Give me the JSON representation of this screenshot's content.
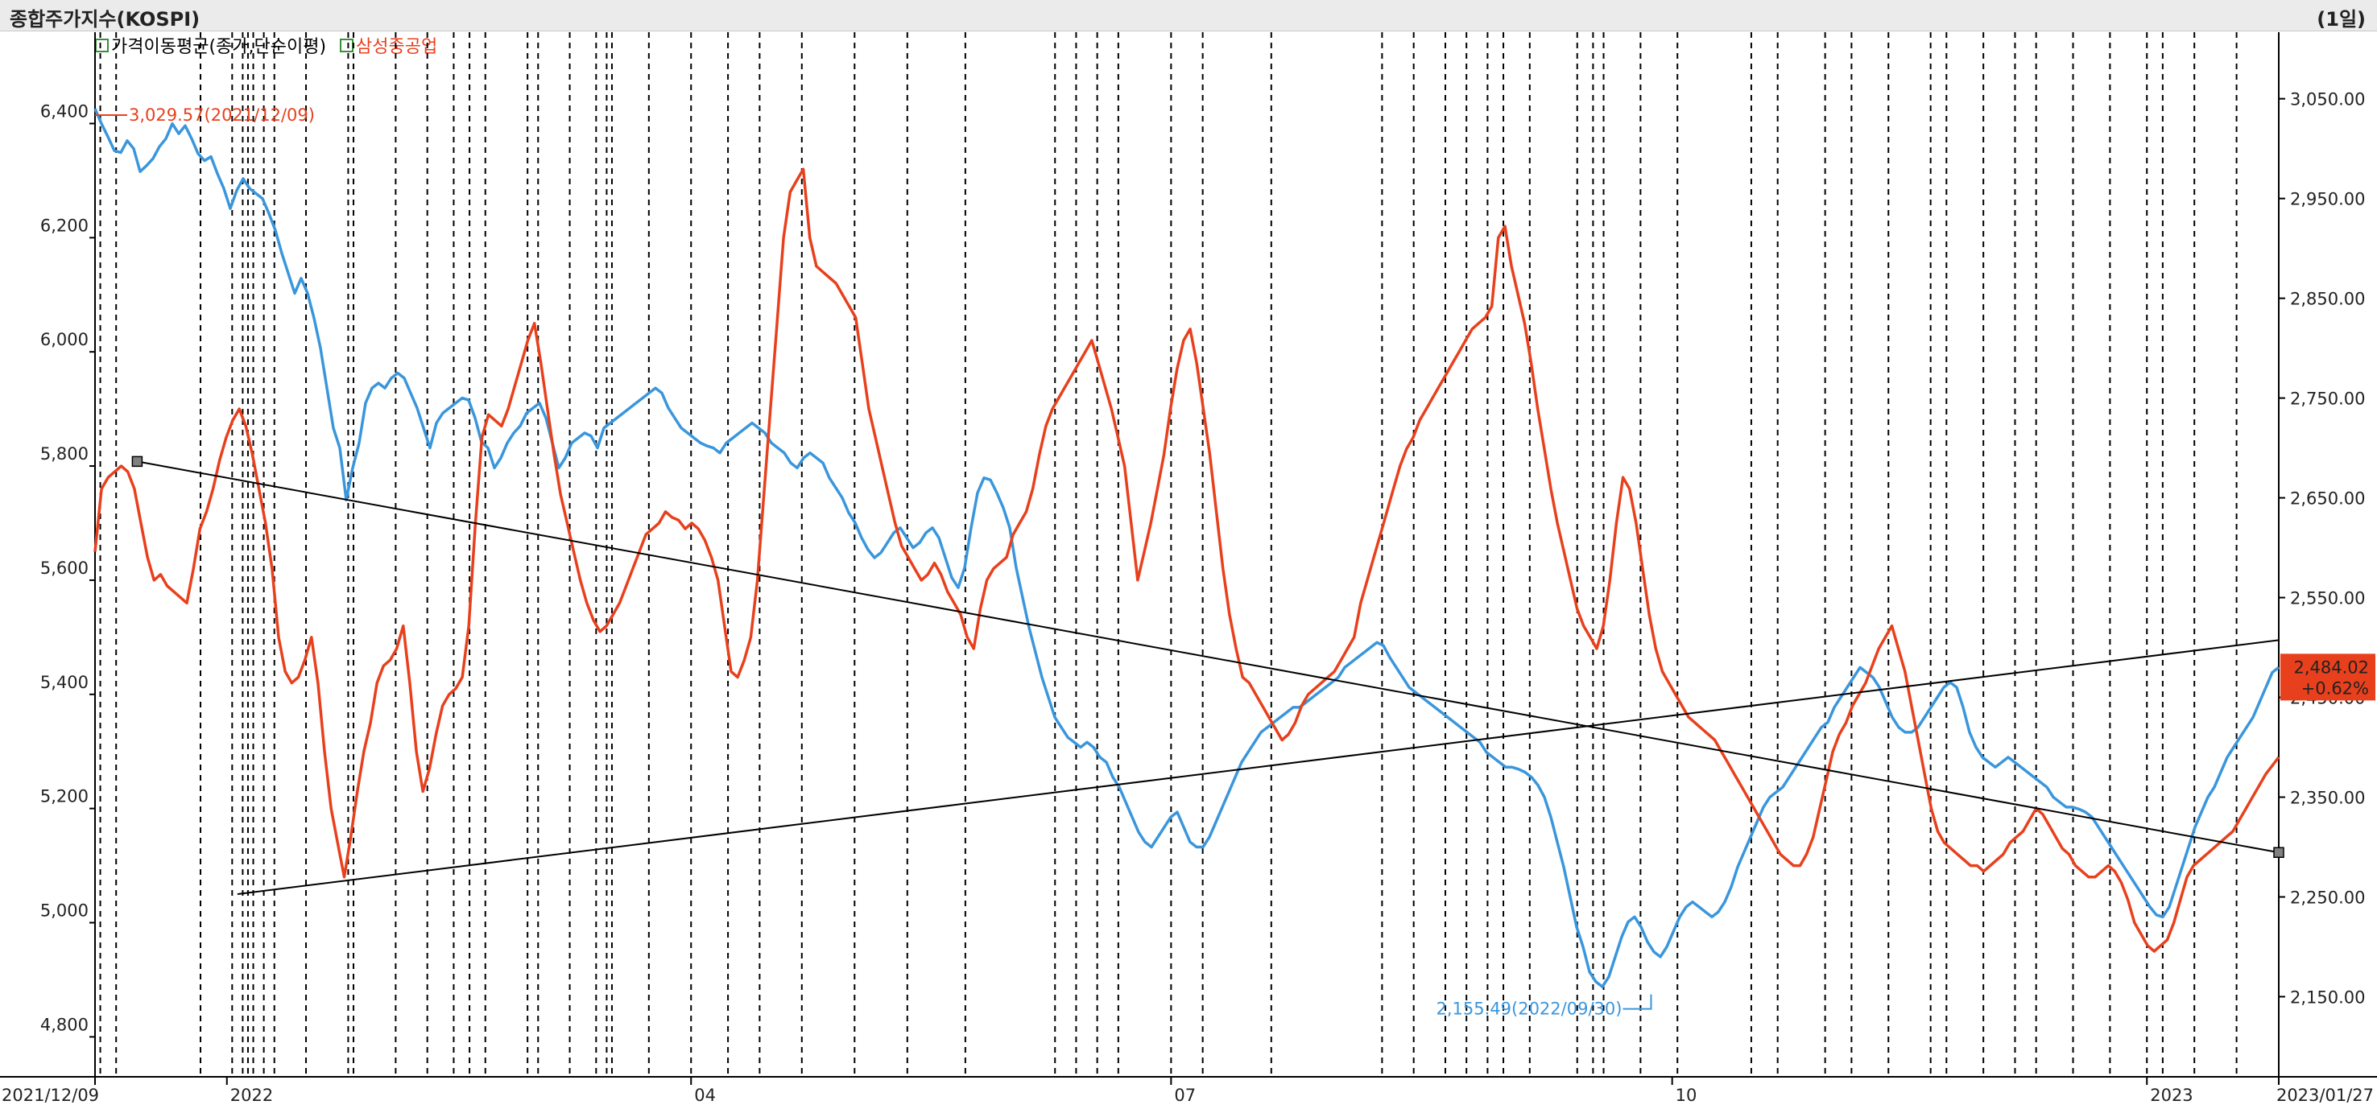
{
  "header": {
    "title": "종합주가지수(KOSPI)",
    "period": "(1일)"
  },
  "legend": [
    {
      "label": "가격이동평균(종가,단순이평)",
      "color": "#000000"
    },
    {
      "label": "삼성중공업",
      "color": "#e8401c"
    }
  ],
  "colors": {
    "blue": "#3a96dc",
    "red": "#e8401c",
    "trend": "#000000",
    "grid": "#000000"
  },
  "chart_data": {
    "type": "line",
    "x_range": [
      "2021/12/09",
      "2023/01/27"
    ],
    "x_tick_labels": [
      {
        "label": "2021/12/09",
        "date": "2021-12-09"
      },
      {
        "label": "2022",
        "date": "2022-01-03"
      },
      {
        "label": "04",
        "date": "2022-04-01"
      },
      {
        "label": "07",
        "date": "2022-07-01"
      },
      {
        "label": "10",
        "date": "2022-10-04"
      },
      {
        "label": "2023",
        "date": "2023-01-02"
      },
      {
        "label": "2023/01/27",
        "date": "2023-01-27"
      }
    ],
    "left_axis": {
      "ticks": [
        "6,400",
        "6,200",
        "6,000",
        "5,800",
        "5,600",
        "5,400",
        "5,200",
        "5,000",
        "4,800"
      ],
      "ylim": [
        4730,
        6560
      ]
    },
    "right_axis": {
      "ticks": [
        "3,050.00",
        "2,950.00",
        "2,850.00",
        "2,750.00",
        "2,650.00",
        "2,550.00",
        "2,450.00",
        "2,350.00",
        "2,250.00",
        "2,150.00"
      ],
      "ylim": [
        2069.7,
        3116.7
      ]
    },
    "series": [
      {
        "axis": "right",
        "color": "#3a96dc",
        "values": [
          3040,
          3025,
          3012,
          2998,
          2996,
          3008,
          3000,
          2977,
          2983,
          2990,
          3002,
          3010,
          3025,
          3015,
          3023,
          3010,
          2995,
          2988,
          2992,
          2975,
          2960,
          2940,
          2958,
          2970,
          2960,
          2955,
          2950,
          2935,
          2918,
          2895,
          2875,
          2855,
          2870,
          2855,
          2830,
          2800,
          2760,
          2720,
          2700,
          2648,
          2680,
          2705,
          2745,
          2760,
          2765,
          2760,
          2770,
          2775,
          2770,
          2755,
          2740,
          2720,
          2700,
          2725,
          2735,
          2740,
          2745,
          2750,
          2748,
          2730,
          2706,
          2700,
          2680,
          2690,
          2705,
          2715,
          2722,
          2735,
          2740,
          2745,
          2730,
          2705,
          2680,
          2690,
          2705,
          2710,
          2715,
          2712,
          2700,
          2720,
          2725,
          2730,
          2735,
          2740,
          2745,
          2750,
          2755,
          2760,
          2755,
          2740,
          2730,
          2720,
          2715,
          2710,
          2705,
          2702,
          2700,
          2695,
          2705,
          2710,
          2715,
          2720,
          2725,
          2720,
          2715,
          2705,
          2700,
          2695,
          2685,
          2680,
          2690,
          2695,
          2690,
          2685,
          2670,
          2660,
          2650,
          2635,
          2625,
          2610,
          2598,
          2590,
          2595,
          2605,
          2615,
          2620,
          2610,
          2600,
          2605,
          2615,
          2620,
          2610,
          2590,
          2570,
          2560,
          2580,
          2620,
          2655,
          2670,
          2668,
          2655,
          2640,
          2620,
          2580,
          2550,
          2520,
          2495,
          2470,
          2450,
          2430,
          2420,
          2410,
          2405,
          2400,
          2405,
          2400,
          2390,
          2385,
          2370,
          2360,
          2345,
          2330,
          2315,
          2305,
          2300,
          2310,
          2320,
          2330,
          2335,
          2320,
          2305,
          2300,
          2300,
          2310,
          2325,
          2340,
          2355,
          2370,
          2385,
          2395,
          2405,
          2415,
          2420,
          2425,
          2430,
          2435,
          2440,
          2440,
          2445,
          2450,
          2455,
          2460,
          2465,
          2470,
          2480,
          2485,
          2490,
          2495,
          2500,
          2505,
          2502,
          2490,
          2480,
          2470,
          2460,
          2455,
          2450,
          2445,
          2440,
          2435,
          2430,
          2425,
          2420,
          2415,
          2410,
          2405,
          2395,
          2390,
          2385,
          2380,
          2380,
          2378,
          2375,
          2370,
          2362,
          2350,
          2330,
          2305,
          2280,
          2250,
          2220,
          2200,
          2175,
          2165,
          2160,
          2170,
          2190,
          2210,
          2225,
          2230,
          2220,
          2205,
          2195,
          2190,
          2200,
          2215,
          2230,
          2240,
          2245,
          2240,
          2235,
          2230,
          2235,
          2245,
          2260,
          2280,
          2295,
          2310,
          2325,
          2340,
          2350,
          2355,
          2360,
          2370,
          2380,
          2390,
          2400,
          2410,
          2420,
          2425,
          2440,
          2450,
          2460,
          2470,
          2480,
          2475,
          2470,
          2460,
          2445,
          2430,
          2420,
          2415,
          2415,
          2420,
          2430,
          2440,
          2450,
          2460,
          2465,
          2460,
          2440,
          2415,
          2400,
          2390,
          2385,
          2380,
          2385,
          2390,
          2385,
          2380,
          2375,
          2370,
          2365,
          2360,
          2350,
          2345,
          2340,
          2340,
          2338,
          2335,
          2330,
          2320,
          2310,
          2300,
          2290,
          2280,
          2270,
          2260,
          2250,
          2240,
          2232,
          2230,
          2240,
          2260,
          2280,
          2300,
          2320,
          2335,
          2350,
          2360,
          2375,
          2390,
          2400,
          2410,
          2420,
          2430,
          2445,
          2460,
          2475,
          2480
        ]
      },
      {
        "axis": "left",
        "color": "#e8401c",
        "values": [
          5650,
          5760,
          5780,
          5790,
          5800,
          5790,
          5760,
          5700,
          5640,
          5600,
          5610,
          5590,
          5580,
          5570,
          5560,
          5620,
          5690,
          5720,
          5760,
          5810,
          5850,
          5880,
          5900,
          5870,
          5820,
          5760,
          5700,
          5620,
          5500,
          5440,
          5420,
          5430,
          5460,
          5500,
          5420,
          5300,
          5200,
          5140,
          5080,
          5150,
          5230,
          5300,
          5350,
          5420,
          5450,
          5460,
          5480,
          5520,
          5420,
          5300,
          5230,
          5270,
          5330,
          5380,
          5400,
          5410,
          5430,
          5520,
          5700,
          5850,
          5890,
          5880,
          5870,
          5900,
          5940,
          5980,
          6020,
          6050,
          5980,
          5900,
          5820,
          5750,
          5700,
          5650,
          5600,
          5560,
          5530,
          5510,
          5520,
          5540,
          5560,
          5590,
          5620,
          5650,
          5680,
          5690,
          5700,
          5720,
          5710,
          5705,
          5690,
          5700,
          5690,
          5670,
          5640,
          5600,
          5520,
          5440,
          5430,
          5460,
          5500,
          5600,
          5750,
          5900,
          6050,
          6200,
          6280,
          6300,
          6320,
          6200,
          6150,
          6140,
          6130,
          6120,
          6100,
          6080,
          6060,
          5980,
          5900,
          5850,
          5800,
          5750,
          5700,
          5660,
          5640,
          5620,
          5600,
          5610,
          5630,
          5610,
          5580,
          5560,
          5540,
          5500,
          5480,
          5550,
          5600,
          5620,
          5630,
          5640,
          5680,
          5700,
          5720,
          5760,
          5820,
          5870,
          5900,
          5920,
          5940,
          5960,
          5980,
          6000,
          6020,
          5980,
          5940,
          5900,
          5850,
          5800,
          5700,
          5600,
          5650,
          5700,
          5760,
          5820,
          5900,
          5970,
          6020,
          6040,
          5980,
          5900,
          5820,
          5720,
          5620,
          5540,
          5480,
          5430,
          5420,
          5400,
          5380,
          5360,
          5340,
          5320,
          5330,
          5350,
          5380,
          5400,
          5410,
          5420,
          5430,
          5440,
          5460,
          5480,
          5500,
          5560,
          5600,
          5640,
          5680,
          5720,
          5760,
          5800,
          5830,
          5850,
          5880,
          5900,
          5920,
          5940,
          5960,
          5980,
          6000,
          6020,
          6040,
          6050,
          6060,
          6080,
          6200,
          6220,
          6150,
          6100,
          6050,
          5980,
          5900,
          5830,
          5760,
          5700,
          5650,
          5600,
          5550,
          5520,
          5500,
          5480,
          5520,
          5600,
          5700,
          5780,
          5760,
          5700,
          5620,
          5540,
          5480,
          5440,
          5420,
          5400,
          5380,
          5360,
          5350,
          5340,
          5330,
          5320,
          5300,
          5280,
          5260,
          5240,
          5220,
          5200,
          5180,
          5160,
          5140,
          5120,
          5110,
          5100,
          5100,
          5120,
          5150,
          5200,
          5250,
          5300,
          5330,
          5350,
          5380,
          5400,
          5420,
          5450,
          5480,
          5500,
          5520,
          5480,
          5440,
          5380,
          5320,
          5260,
          5200,
          5160,
          5140,
          5130,
          5120,
          5110,
          5100,
          5100,
          5090,
          5100,
          5110,
          5120,
          5140,
          5150,
          5160,
          5180,
          5200,
          5190,
          5170,
          5150,
          5130,
          5120,
          5100,
          5090,
          5080,
          5080,
          5090,
          5100,
          5090,
          5070,
          5040,
          5000,
          4980,
          4960,
          4950,
          4960,
          4970,
          5000,
          5040,
          5080,
          5100,
          5110,
          5120,
          5130,
          5140,
          5150,
          5160,
          5180,
          5200,
          5220,
          5240,
          5260,
          5275,
          5290
        ]
      }
    ],
    "trendlines": [
      {
        "axis": "left",
        "from": [
          "2021-12-17",
          5808
        ],
        "to": [
          "2023-01-27",
          5123
        ]
      },
      {
        "axis": "left",
        "from": [
          "2022-01-05",
          5050
        ],
        "to": [
          "2023-01-27",
          5495
        ]
      }
    ],
    "vertical_markers": [
      "2021-12-10",
      "2021-12-13",
      "2021-12-29",
      "2022-01-04",
      "2022-01-06",
      "2022-01-07",
      "2022-01-08",
      "2022-01-10",
      "2022-01-12",
      "2022-01-18",
      "2022-01-26",
      "2022-01-27",
      "2022-02-04",
      "2022-02-10",
      "2022-02-15",
      "2022-02-18",
      "2022-02-21",
      "2022-03-01",
      "2022-03-03",
      "2022-03-09",
      "2022-03-14",
      "2022-03-16",
      "2022-03-17",
      "2022-03-24",
      "2022-04-01",
      "2022-04-08",
      "2022-04-14",
      "2022-04-22",
      "2022-05-02",
      "2022-05-12",
      "2022-05-23",
      "2022-06-09",
      "2022-06-13",
      "2022-06-17",
      "2022-06-21",
      "2022-07-01",
      "2022-07-07",
      "2022-07-20",
      "2022-08-10",
      "2022-08-16",
      "2022-08-22",
      "2022-08-26",
      "2022-08-30",
      "2022-09-02",
      "2022-09-07",
      "2022-09-16",
      "2022-09-19",
      "2022-09-21",
      "2022-09-28",
      "2022-10-05",
      "2022-10-19",
      "2022-10-24",
      "2022-11-02",
      "2022-11-07",
      "2022-11-14",
      "2022-11-22",
      "2022-11-25",
      "2022-12-02",
      "2022-12-08",
      "2022-12-12",
      "2022-12-19",
      "2022-12-26",
      "2023-01-02",
      "2023-01-05",
      "2023-01-11",
      "2023-01-19"
    ],
    "annotations": [
      {
        "text": "3,029.57(2021/12/09)",
        "color": "#e8401c",
        "axis": "right",
        "x": "2021-12-09",
        "y": 3029.57
      },
      {
        "text": "2,155.49(2022/09/30)",
        "color": "#3a96dc",
        "axis": "right",
        "x": "2022-09-30",
        "y": 2155.49
      }
    ],
    "last_value": {
      "value": "2,484.02",
      "change": "+0.62%",
      "color": "#e8401c"
    }
  }
}
